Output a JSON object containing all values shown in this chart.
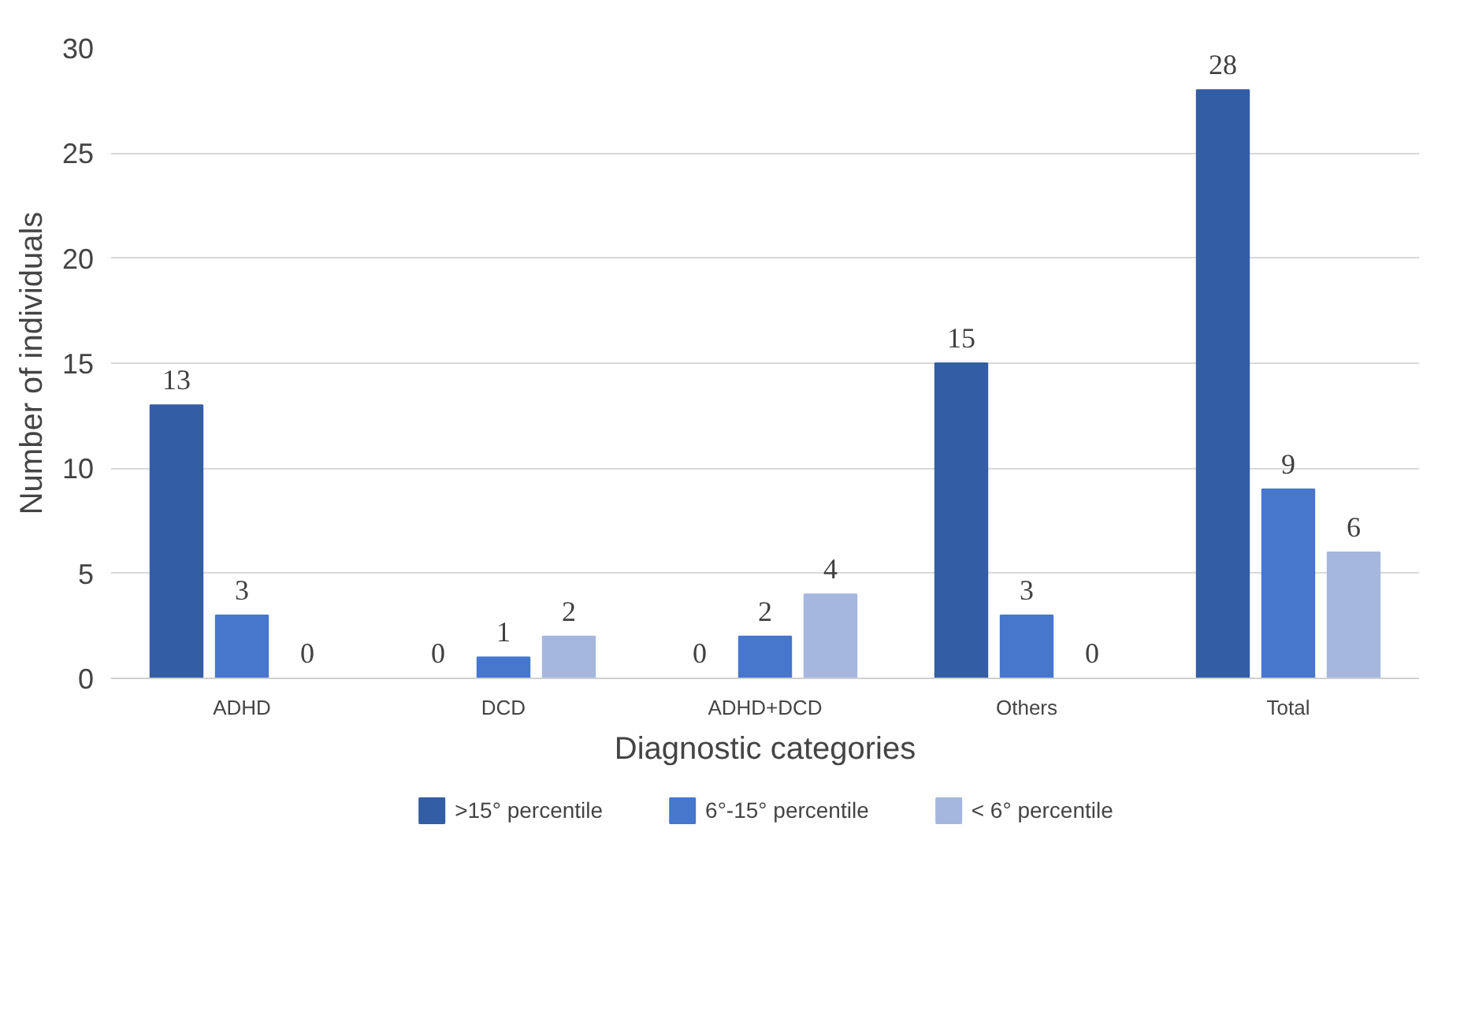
{
  "chart_data": {
    "type": "bar",
    "xlabel": "Diagnostic categories",
    "ylabel": "Number of individuals",
    "categories": [
      "ADHD",
      "DCD",
      "ADHD+DCD",
      "Others",
      "Total"
    ],
    "series": [
      {
        "name": ">15° percentile",
        "color": "#335ea4",
        "values": [
          13,
          0,
          0,
          15,
          28
        ]
      },
      {
        "name": "6°-15° percentile",
        "color": "#4677cd",
        "values": [
          3,
          1,
          2,
          3,
          9
        ]
      },
      {
        "name": "< 6° percentile",
        "color": "#a6b7de",
        "values": [
          0,
          2,
          4,
          0,
          6
        ]
      }
    ],
    "ylim": [
      0,
      30
    ],
    "yticks": [
      0,
      5,
      10,
      15,
      20,
      25,
      30
    ],
    "grid": "y",
    "legend": "bottom",
    "data_labels": true
  }
}
